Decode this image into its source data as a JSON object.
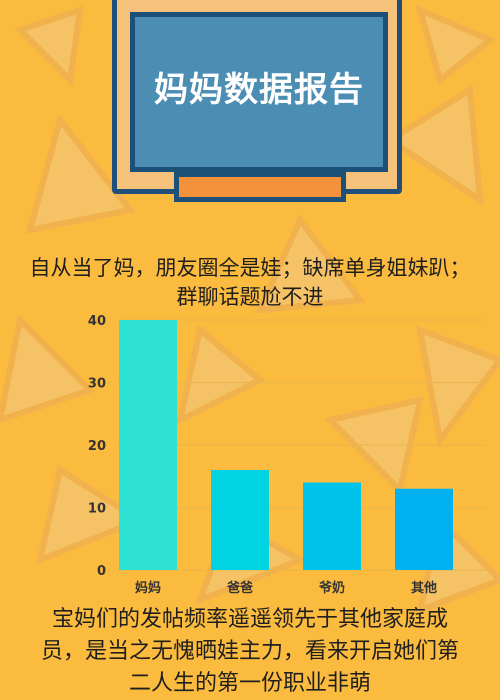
{
  "header": {
    "title": "妈妈数据报告"
  },
  "captions": {
    "intro": "自从当了妈，朋友圈全是娃；缺席单身姐妹趴；群聊话题尬不进",
    "outro": "宝妈们的发帖频率遥遥领先于其他家庭成员，是当之无愧晒娃主力，看来开启她们第二人生的第一份职业非萌"
  },
  "chart_data": {
    "type": "bar",
    "categories": [
      "妈妈",
      "爸爸",
      "爷奶",
      "其他"
    ],
    "values": [
      40,
      16,
      14,
      13
    ],
    "colors": [
      "#2ee2d3",
      "#00d3e2",
      "#00c3ea",
      "#00b1f0"
    ],
    "ylim": [
      0,
      40
    ],
    "yticks": [
      0,
      10,
      20,
      30,
      40
    ],
    "grid": true
  },
  "colors": {
    "background": "#fbbb3e",
    "board_frame": "#1b5078",
    "screen": "#4b8db3",
    "tray": "#f4913b"
  }
}
